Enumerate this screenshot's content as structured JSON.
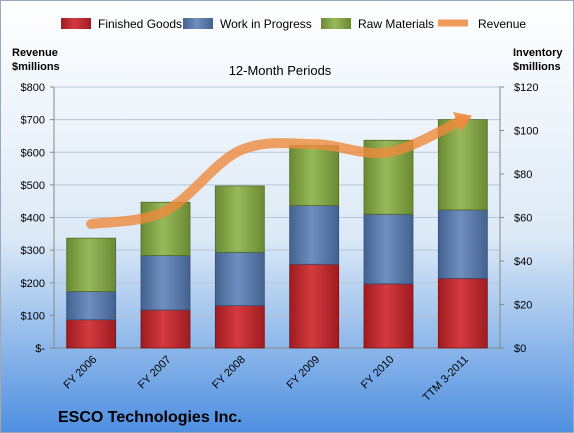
{
  "chart_data": {
    "type": "bar",
    "stacked": true,
    "subtitle": "12-Month Periods",
    "company": "ESCO Technologies Inc.",
    "categories": [
      "FY 2006",
      "FY 2007",
      "FY 2008",
      "FY 2009",
      "FY 2010",
      "TTM 3-2011"
    ],
    "left_axis": {
      "title_line1": "Revenue",
      "title_line2": "$millions",
      "ylim": [
        0,
        800
      ],
      "ticks": [
        0,
        100,
        200,
        300,
        400,
        500,
        600,
        700,
        800
      ],
      "tick_labels": [
        "$-",
        "$100",
        "$200",
        "$300",
        "$400",
        "$500",
        "$600",
        "$700",
        "$800"
      ]
    },
    "right_axis": {
      "title_line1": "Inventory",
      "title_line2": "$millions",
      "ylim": [
        0,
        120
      ],
      "ticks": [
        0,
        20,
        40,
        60,
        80,
        100,
        120
      ],
      "tick_labels": [
        "$0",
        "$20",
        "$40",
        "$60",
        "$80",
        "$100",
        "$120"
      ]
    },
    "series": [
      {
        "name": "Finished Goods",
        "axis": "right",
        "color": "#c0262b",
        "values": [
          13,
          17.5,
          19.5,
          38.5,
          29.5,
          32
        ]
      },
      {
        "name": "Work in Progress",
        "axis": "right",
        "color": "#5576a8",
        "values": [
          13,
          25,
          24.5,
          27,
          32,
          31.5
        ]
      },
      {
        "name": "Raw Materials",
        "axis": "right",
        "color": "#80a244",
        "values": [
          24.5,
          24.5,
          30.5,
          27.5,
          34,
          41.5
        ]
      },
      {
        "name": "Revenue",
        "axis": "left",
        "type": "line",
        "color": "#ef8a3c",
        "values": [
          380,
          420,
          605,
          625,
          600,
          700
        ]
      }
    ],
    "legend": [
      "Finished Goods",
      "Work in Progress",
      "Raw Materials",
      "Revenue"
    ],
    "legend_position": "top"
  }
}
